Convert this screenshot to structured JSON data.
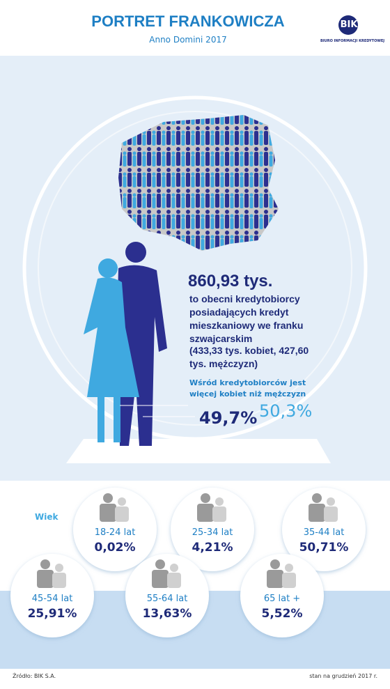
{
  "header": {
    "title": "PORTRET FRANKOWICZA",
    "subtitle": "Anno Domini 2017",
    "logo": {
      "mark": "BIK",
      "name": "BIURO INFORMACJI KREDYTOWEJ"
    }
  },
  "main": {
    "headline": "860,93 tys.",
    "description": "to obecni kredytobiorcy posiadających kredyt mieszkaniowy we franku szwajcarskim",
    "breakdown": "(433,33 tys. kobiet, 427,60 tys. mężczyzn)",
    "note": "Wśród kredytobiorców jest więcej kobiet niż mężczyzn",
    "men_share": "49,7%",
    "women_share": "50,3%"
  },
  "age": {
    "label": "Wiek",
    "groups": [
      {
        "label": "18-24 lat",
        "share": "0,02%"
      },
      {
        "label": "25-34 lat",
        "share": "4,21%"
      },
      {
        "label": "35-44 lat",
        "share": "50,71%"
      },
      {
        "label": "45-54 lat",
        "share": "25,91%"
      },
      {
        "label": "55-64 lat",
        "share": "13,63%"
      },
      {
        "label": "65 lat +",
        "share": "5,52%"
      }
    ]
  },
  "footer": {
    "source": "Źródło: BIK S.A.",
    "date": "stan na grudzień 2017 r."
  }
}
